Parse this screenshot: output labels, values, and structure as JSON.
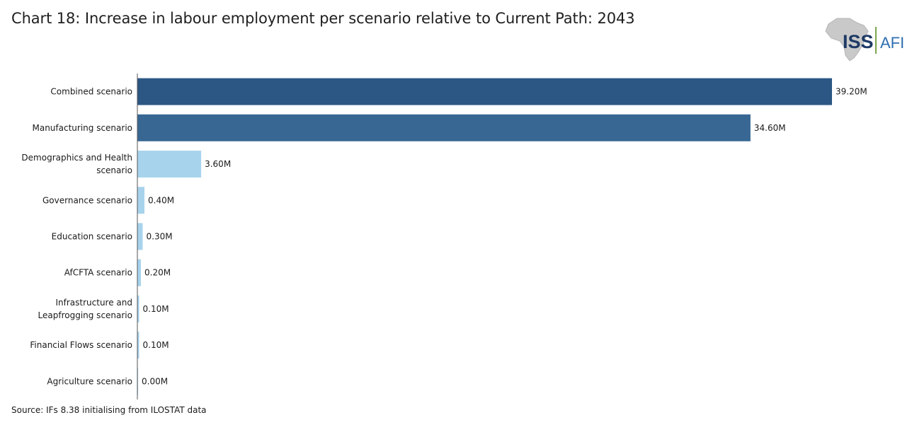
{
  "title": "Chart 18: Increase in labour employment per scenario relative to Current Path: 2043",
  "source": "Source: IFs 8.38 initialising from ILOSTAT data",
  "logo": {
    "text_left": "ISS",
    "text_right": "AFI",
    "icon": "africa-map-icon"
  },
  "colors": {
    "dark_blue": "#2c5784",
    "mid_blue": "#386793",
    "light_blue": "#a8d3ec",
    "axis": "#555555"
  },
  "chart_data": {
    "type": "bar",
    "orientation": "horizontal",
    "categories": [
      [
        "Combined scenario"
      ],
      [
        "Manufacturing scenario"
      ],
      [
        "Demographics and Health",
        "scenario"
      ],
      [
        "Governance scenario"
      ],
      [
        "Education scenario"
      ],
      [
        "AfCFTA scenario"
      ],
      [
        "Infrastructure and",
        "Leapfrogging scenario"
      ],
      [
        "Financial Flows scenario"
      ],
      [
        "Agriculture scenario"
      ]
    ],
    "values": [
      39.2,
      34.6,
      3.6,
      0.4,
      0.3,
      0.2,
      0.1,
      0.1,
      0.0
    ],
    "value_labels": [
      "39.20M",
      "34.60M",
      "3.60M",
      "0.40M",
      "0.30M",
      "0.20M",
      "0.10M",
      "0.10M",
      "0.00M"
    ],
    "bar_colors": [
      "#2c5784",
      "#386793",
      "#a8d3ec",
      "#a8d3ec",
      "#a8d3ec",
      "#a8d3ec",
      "#a8d3ec",
      "#a8d3ec",
      "#a8d3ec"
    ],
    "xlim": [
      0,
      39.2
    ],
    "grid": false,
    "legend": "none"
  }
}
